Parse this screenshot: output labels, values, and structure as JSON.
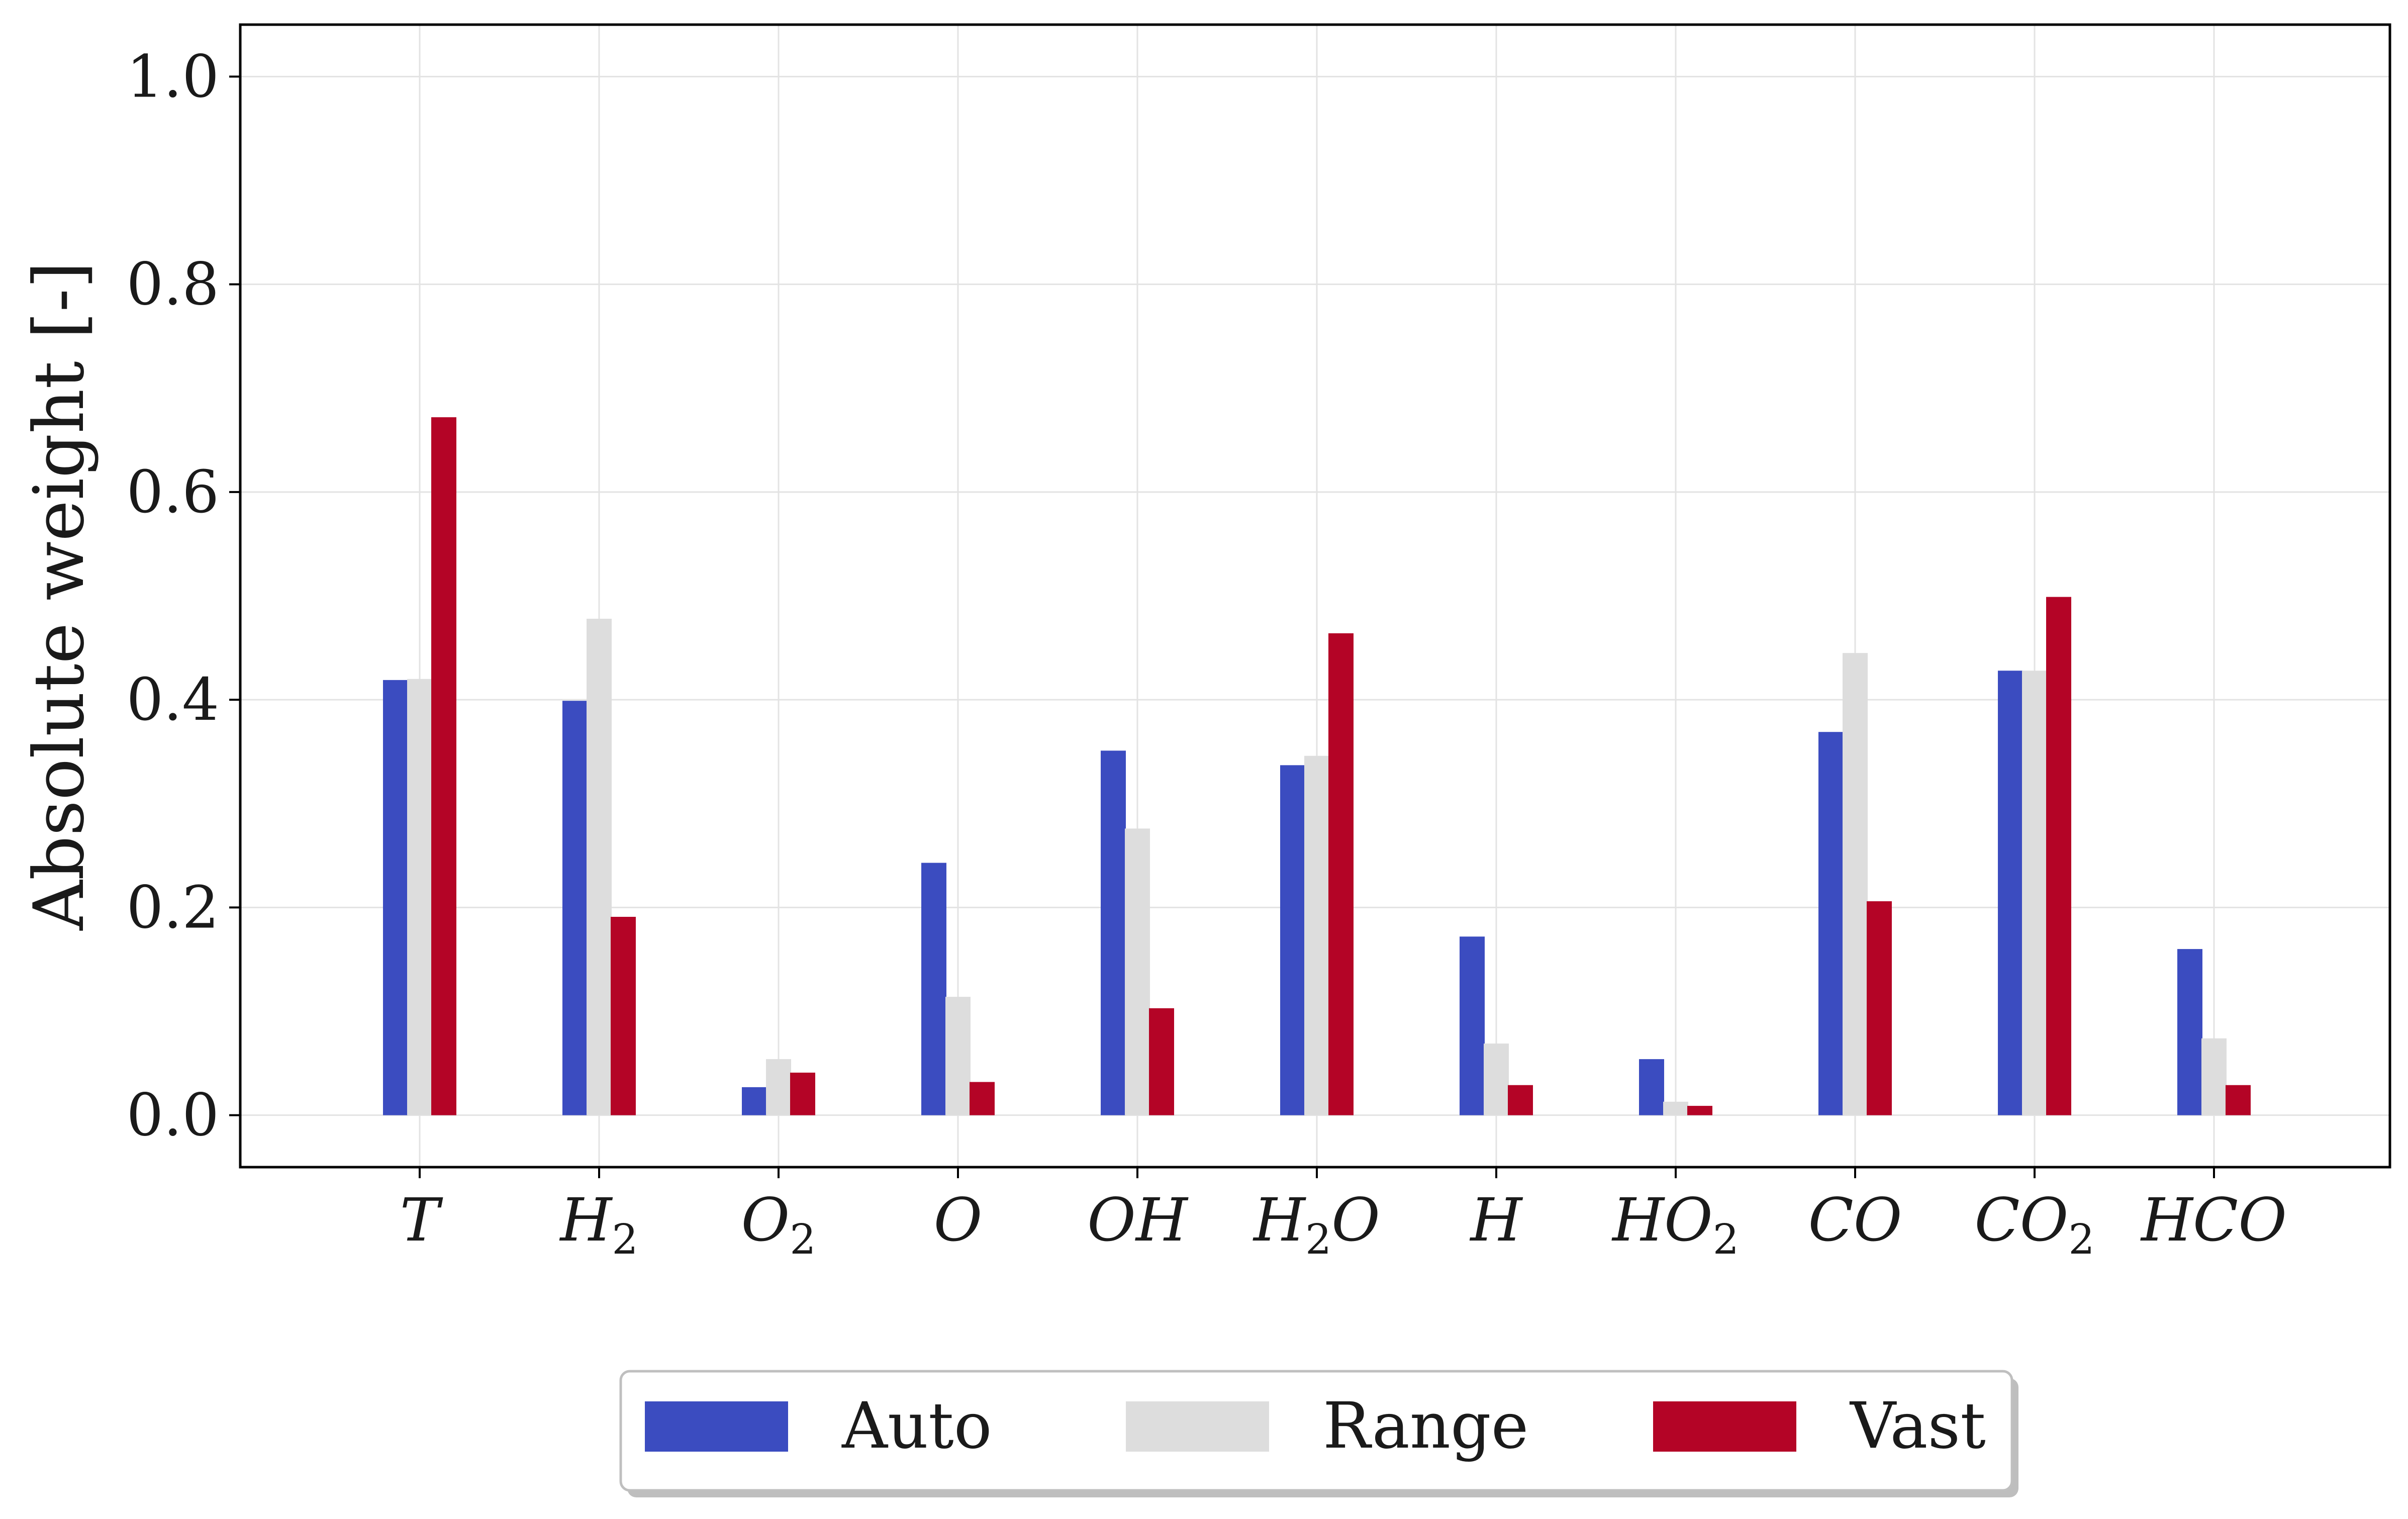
{
  "chart_data": {
    "type": "bar",
    "title": "",
    "xlabel": "",
    "ylabel": "Absolute weight [-]",
    "ylim": [
      -0.05,
      1.05
    ],
    "yticks": [
      "0.0",
      "0.2",
      "0.4",
      "0.6",
      "0.8",
      "1.0"
    ],
    "ytick_values": [
      0.0,
      0.2,
      0.4,
      0.6,
      0.8,
      1.0
    ],
    "grid": true,
    "legend_position": "bottom-center, below plot",
    "categories": [
      {
        "base": "T",
        "sub": ""
      },
      {
        "base": "H",
        "sub": "2"
      },
      {
        "base": "O",
        "sub": "2"
      },
      {
        "base": "O",
        "sub": ""
      },
      {
        "base": "OH",
        "sub": ""
      },
      {
        "base": "H",
        "sub": "2",
        "tail": "O"
      },
      {
        "base": "H",
        "sub": ""
      },
      {
        "base": "HO",
        "sub": "2"
      },
      {
        "base": "CO",
        "sub": ""
      },
      {
        "base": "CO",
        "sub": "2"
      },
      {
        "base": "HCO",
        "sub": ""
      }
    ],
    "series": [
      {
        "name": "Auto",
        "color": "#3b4cc0",
        "values": [
          0.419,
          0.399,
          0.027,
          0.243,
          0.351,
          0.337,
          0.172,
          0.054,
          0.369,
          0.428,
          0.16
        ]
      },
      {
        "name": "Range",
        "color": "#dddddd",
        "values": [
          0.42,
          0.478,
          0.054,
          0.114,
          0.276,
          0.346,
          0.069,
          0.013,
          0.445,
          0.428,
          0.074
        ]
      },
      {
        "name": "Vast",
        "color": "#b40426",
        "values": [
          0.672,
          0.191,
          0.041,
          0.032,
          0.103,
          0.464,
          0.029,
          0.009,
          0.206,
          0.499,
          0.029
        ]
      }
    ]
  },
  "legend": {
    "items": [
      {
        "label": "Auto",
        "color": "#3b4cc0"
      },
      {
        "label": "Range",
        "color": "#dddddd"
      },
      {
        "label": "Vast",
        "color": "#b40426"
      }
    ]
  }
}
